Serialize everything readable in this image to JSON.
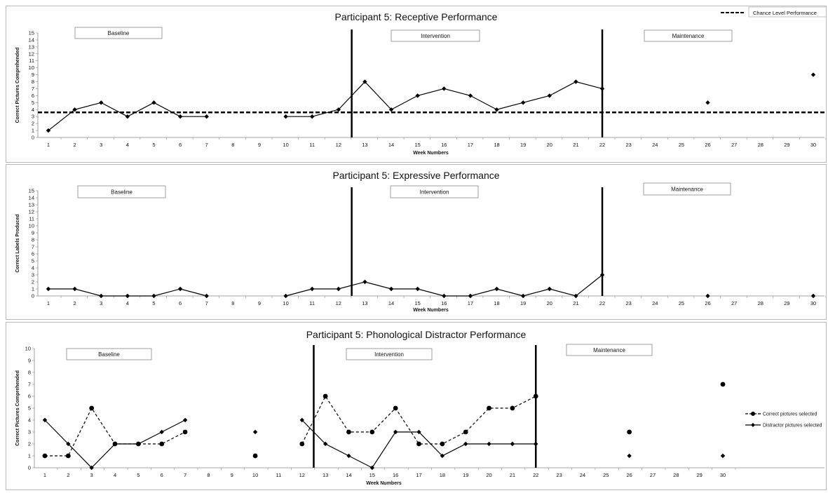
{
  "chart_data": [
    {
      "type": "line",
      "title": "Participant 5: Receptive Performance",
      "xlabel": "Week Numbers",
      "ylabel": "Correct Pictures Comprehended",
      "xlim": [
        1,
        30
      ],
      "ylim": [
        0,
        15
      ],
      "yticks": [
        0,
        1,
        2,
        3,
        4,
        5,
        6,
        7,
        8,
        9,
        10,
        11,
        12,
        13,
        14,
        15
      ],
      "xticks": [
        1,
        2,
        3,
        4,
        5,
        6,
        7,
        8,
        9,
        10,
        11,
        12,
        13,
        14,
        15,
        16,
        17,
        18,
        19,
        20,
        21,
        22,
        23,
        24,
        25,
        26,
        27,
        28,
        29,
        30
      ],
      "phases": [
        "Baseline",
        "Intervention",
        "Maintenance"
      ],
      "phase_change_lines_x": [
        12.5,
        22
      ],
      "reference_line": {
        "name": "Chance Level Performance",
        "y": 3.6,
        "style": "dashed"
      },
      "legend": {
        "location": "top-right"
      },
      "grid": false,
      "series": [
        {
          "name": "",
          "style": "solid",
          "segments": [
            {
              "x": [
                1,
                2,
                3,
                4,
                5,
                6,
                7
              ],
              "y": [
                1,
                4,
                5,
                3,
                5,
                3,
                3
              ]
            },
            {
              "x": [
                10,
                11,
                12,
                13,
                14,
                15,
                16,
                17,
                18,
                19,
                20,
                21,
                22
              ],
              "y": [
                3,
                3,
                4,
                8,
                4,
                6,
                7,
                6,
                4,
                5,
                6,
                8,
                7
              ]
            },
            {
              "x": [
                26
              ],
              "y": [
                5
              ]
            },
            {
              "x": [
                30
              ],
              "y": [
                9
              ]
            }
          ]
        }
      ]
    },
    {
      "type": "line",
      "title": "Participant 5: Expressive Performance",
      "xlabel": "Week Numbers",
      "ylabel": "Correct Labels Produced",
      "xlim": [
        1,
        30
      ],
      "ylim": [
        0,
        15
      ],
      "yticks": [
        0,
        1,
        2,
        3,
        4,
        5,
        6,
        7,
        8,
        9,
        10,
        11,
        12,
        13,
        14,
        15
      ],
      "xticks": [
        1,
        2,
        3,
        4,
        5,
        6,
        7,
        8,
        9,
        10,
        11,
        12,
        13,
        14,
        15,
        16,
        17,
        18,
        19,
        20,
        21,
        22,
        23,
        24,
        25,
        26,
        27,
        28,
        29,
        30
      ],
      "phases": [
        "Baseline",
        "Intervention",
        "Maintenance"
      ],
      "phase_change_lines_x": [
        12.5,
        22
      ],
      "grid": false,
      "series": [
        {
          "name": "",
          "style": "solid",
          "segments": [
            {
              "x": [
                1,
                2,
                3,
                4,
                5,
                6,
                7
              ],
              "y": [
                1,
                1,
                0,
                0,
                0,
                1,
                0
              ]
            },
            {
              "x": [
                10,
                11,
                12,
                13,
                14,
                15,
                16,
                17,
                18,
                19,
                20,
                21,
                22
              ],
              "y": [
                0,
                1,
                1,
                2,
                1,
                1,
                0,
                0,
                1,
                0,
                1,
                0,
                3
              ]
            },
            {
              "x": [
                26
              ],
              "y": [
                0
              ]
            },
            {
              "x": [
                30
              ],
              "y": [
                0
              ]
            }
          ]
        }
      ]
    },
    {
      "type": "line",
      "title": "Participant 5: Phonological Distractor Performance",
      "xlabel": "Week Numbers",
      "ylabel": "Correct Pictures Comprehended",
      "xlim": [
        1,
        30
      ],
      "ylim": [
        0,
        10
      ],
      "yticks": [
        0,
        1,
        2,
        3,
        4,
        5,
        6,
        7,
        8,
        9,
        10
      ],
      "xticks": [
        1,
        2,
        3,
        4,
        5,
        6,
        7,
        8,
        9,
        10,
        11,
        12,
        13,
        14,
        15,
        16,
        17,
        18,
        19,
        20,
        21,
        22,
        23,
        24,
        25,
        26,
        27,
        28,
        29,
        30
      ],
      "phases": [
        "Baseline",
        "Intervention",
        "Maintenance"
      ],
      "phase_change_lines_x": [
        12.5,
        22
      ],
      "legend": {
        "location": "right"
      },
      "grid": false,
      "series": [
        {
          "name": "Correct pictures selected",
          "style": "dashed",
          "marker": "circle",
          "segments": [
            {
              "x": [
                1,
                2,
                3,
                4,
                5,
                6,
                7
              ],
              "y": [
                1,
                1,
                5,
                2,
                2,
                2,
                3
              ]
            },
            {
              "x": [
                10
              ],
              "y": [
                1
              ]
            },
            {
              "x": [
                12,
                13,
                14,
                15,
                16,
                17,
                18,
                19,
                20,
                21,
                22
              ],
              "y": [
                2,
                6,
                3,
                3,
                5,
                2,
                2,
                3,
                5,
                5,
                6
              ]
            },
            {
              "x": [
                26
              ],
              "y": [
                3
              ]
            },
            {
              "x": [
                30
              ],
              "y": [
                7
              ]
            }
          ]
        },
        {
          "name": "Distractor pictures selected",
          "style": "solid",
          "marker": "diamond",
          "segments": [
            {
              "x": [
                1,
                2,
                3,
                4,
                5,
                6,
                7
              ],
              "y": [
                4,
                2,
                0,
                2,
                2,
                3,
                4
              ]
            },
            {
              "x": [
                10
              ],
              "y": [
                3
              ]
            },
            {
              "x": [
                12,
                13,
                14,
                15,
                16,
                17,
                18,
                19,
                20,
                21,
                22
              ],
              "y": [
                4,
                2,
                1,
                0,
                3,
                3,
                1,
                2,
                2,
                2,
                2
              ]
            },
            {
              "x": [
                26
              ],
              "y": [
                1
              ]
            },
            {
              "x": [
                30
              ],
              "y": [
                1
              ]
            }
          ]
        }
      ]
    }
  ]
}
